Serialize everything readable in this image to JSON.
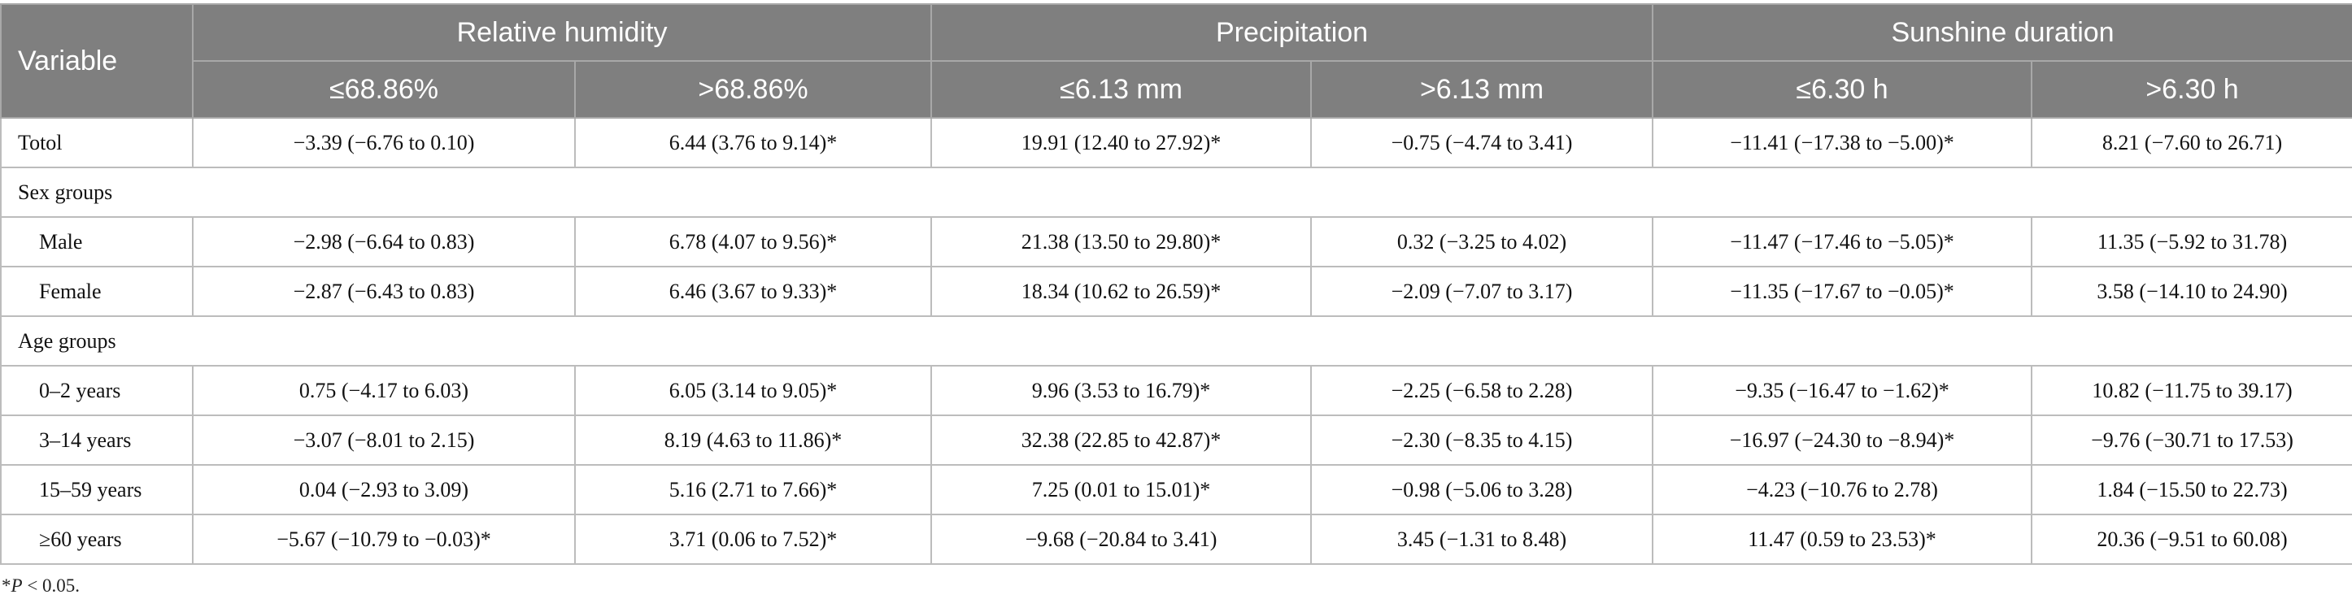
{
  "table": {
    "variable_header": "Variable",
    "groups": [
      "Relative humidity",
      "Precipitation",
      "Sunshine duration"
    ],
    "subheaders": [
      "≤68.86%",
      ">68.86%",
      "≤6.13 mm",
      ">6.13 mm",
      "≤6.30 h",
      ">6.30 h"
    ],
    "rows": [
      {
        "type": "data",
        "label": "Totol",
        "cells": [
          "−3.39 (−6.76 to 0.10)",
          "6.44 (3.76 to 9.14)*",
          "19.91 (12.40 to 27.92)*",
          "−0.75 (−4.74 to 3.41)",
          "−11.41 (−17.38 to −5.00)*",
          "8.21 (−7.60 to 26.71)"
        ]
      },
      {
        "type": "group",
        "label": "Sex groups"
      },
      {
        "type": "data",
        "indent": true,
        "label": "Male",
        "cells": [
          "−2.98 (−6.64 to 0.83)",
          "6.78 (4.07 to 9.56)*",
          "21.38 (13.50 to 29.80)*",
          "0.32 (−3.25 to 4.02)",
          "−11.47 (−17.46 to −5.05)*",
          "11.35 (−5.92 to 31.78)"
        ]
      },
      {
        "type": "data",
        "indent": true,
        "label": "Female",
        "cells": [
          "−2.87 (−6.43 to 0.83)",
          "6.46 (3.67 to 9.33)*",
          "18.34 (10.62 to 26.59)*",
          "−2.09 (−7.07 to 3.17)",
          "−11.35 (−17.67 to −0.05)*",
          "3.58 (−14.10 to 24.90)"
        ]
      },
      {
        "type": "group",
        "label": "Age groups"
      },
      {
        "type": "data",
        "indent": true,
        "label": "0–2 years",
        "cells": [
          "0.75 (−4.17 to 6.03)",
          "6.05 (3.14 to 9.05)*",
          "9.96 (3.53 to 16.79)*",
          "−2.25 (−6.58 to 2.28)",
          "−9.35 (−16.47 to −1.62)*",
          "10.82 (−11.75 to 39.17)"
        ]
      },
      {
        "type": "data",
        "indent": true,
        "label": "3–14 years",
        "cells": [
          "−3.07 (−8.01 to 2.15)",
          "8.19 (4.63 to 11.86)*",
          "32.38 (22.85 to 42.87)*",
          "−2.30 (−8.35 to 4.15)",
          "−16.97 (−24.30 to −8.94)*",
          "−9.76 (−30.71 to 17.53)"
        ]
      },
      {
        "type": "data",
        "indent": true,
        "label": "15–59 years",
        "cells": [
          "0.04 (−2.93 to 3.09)",
          "5.16 (2.71 to 7.66)*",
          "7.25 (0.01 to 15.01)*",
          "−0.98 (−5.06 to 3.28)",
          "−4.23 (−10.76 to 2.78)",
          "1.84 (−15.50 to 22.73)"
        ]
      },
      {
        "type": "data",
        "indent": true,
        "label": "≥60 years",
        "cells": [
          "−5.67 (−10.79 to −0.03)*",
          "3.71 (0.06 to 7.52)*",
          "−9.68 (−20.84 to 3.41)",
          "3.45 (−1.31 to 8.48)",
          "11.47 (0.59 to 23.53)*",
          "20.36 (−9.51 to 60.08)"
        ]
      }
    ]
  },
  "footnote": {
    "marker": "*",
    "italic": "P",
    "text": " < 0.05."
  }
}
